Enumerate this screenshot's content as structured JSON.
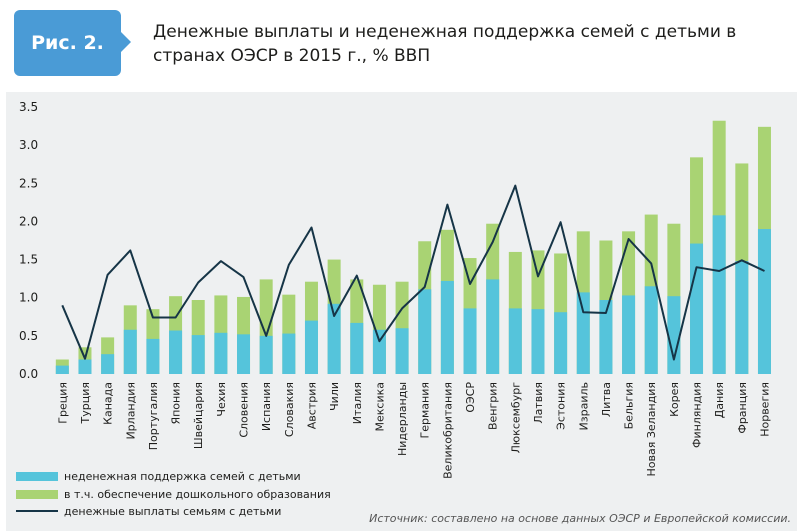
{
  "header": {
    "badge": "Рис. 2.",
    "title": "Денежные выплаты и неденежная поддержка семей с детьми в странах ОЭСР в 2015 г., % ВВП"
  },
  "source": "Источник: составлено на основе данных ОЭСР и Европейской комиссии.",
  "colors": {
    "non_monetary": "#55c4db",
    "preschool": "#a9d373",
    "cash": "#163547",
    "panel": "#eef0f1"
  },
  "chart_data": {
    "type": "bar",
    "ylim": [
      0,
      3.5
    ],
    "yticks": [
      "0.0",
      "0.5",
      "1.0",
      "1.5",
      "2.0",
      "2.5",
      "3.0",
      "3.5"
    ],
    "categories": [
      "Греция",
      "Турция",
      "Канада",
      "Ирландия",
      "Португалия",
      "Япония",
      "Швейцария",
      "Чехия",
      "Словения",
      "Испания",
      "Словакия",
      "Австрия",
      "Чили",
      "Италия",
      "Мексика",
      "Нидерланды",
      "Германия",
      "Великобритания",
      "ОЭСР",
      "Венгрия",
      "Люксембург",
      "Латвия",
      "Эстония",
      "Израиль",
      "Литва",
      "Бельгия",
      "Новая Зеландия",
      "Корея",
      "Финляндия",
      "Дания",
      "Франция",
      "Норвегия"
    ],
    "series": [
      {
        "name": "неденежная поддержка семей с детьми",
        "type": "bar",
        "values": [
          0.19,
          0.35,
          0.48,
          0.9,
          0.85,
          1.02,
          0.97,
          1.03,
          1.01,
          1.24,
          1.04,
          1.21,
          1.5,
          1.24,
          1.17,
          1.21,
          1.74,
          1.89,
          1.52,
          1.97,
          1.6,
          1.62,
          1.58,
          1.87,
          1.75,
          1.87,
          2.09,
          1.97,
          2.84,
          3.32,
          2.76,
          3.24
        ]
      },
      {
        "name": "в т.ч. обеспечение дошкольного образования",
        "type": "bar",
        "values": [
          0.11,
          0.19,
          0.26,
          0.58,
          0.46,
          0.57,
          0.51,
          0.54,
          0.52,
          0.5,
          0.53,
          0.7,
          0.92,
          0.67,
          0.58,
          0.6,
          1.11,
          1.22,
          0.86,
          1.24,
          0.86,
          0.85,
          0.81,
          1.07,
          0.97,
          1.03,
          1.15,
          1.02,
          1.71,
          2.08,
          1.48,
          1.9
        ]
      },
      {
        "name": "денежные выплаты семьям с детьми",
        "type": "line",
        "values": [
          0.9,
          0.2,
          1.3,
          1.62,
          0.74,
          0.74,
          1.2,
          1.48,
          1.27,
          0.5,
          1.43,
          1.92,
          0.76,
          1.29,
          0.43,
          0.86,
          1.14,
          2.22,
          1.18,
          1.73,
          2.47,
          1.28,
          1.99,
          0.81,
          0.8,
          1.77,
          1.45,
          0.19,
          1.4,
          1.35,
          1.49,
          1.35
        ]
      }
    ],
    "legend_position": "bottom-left",
    "grid": false
  }
}
